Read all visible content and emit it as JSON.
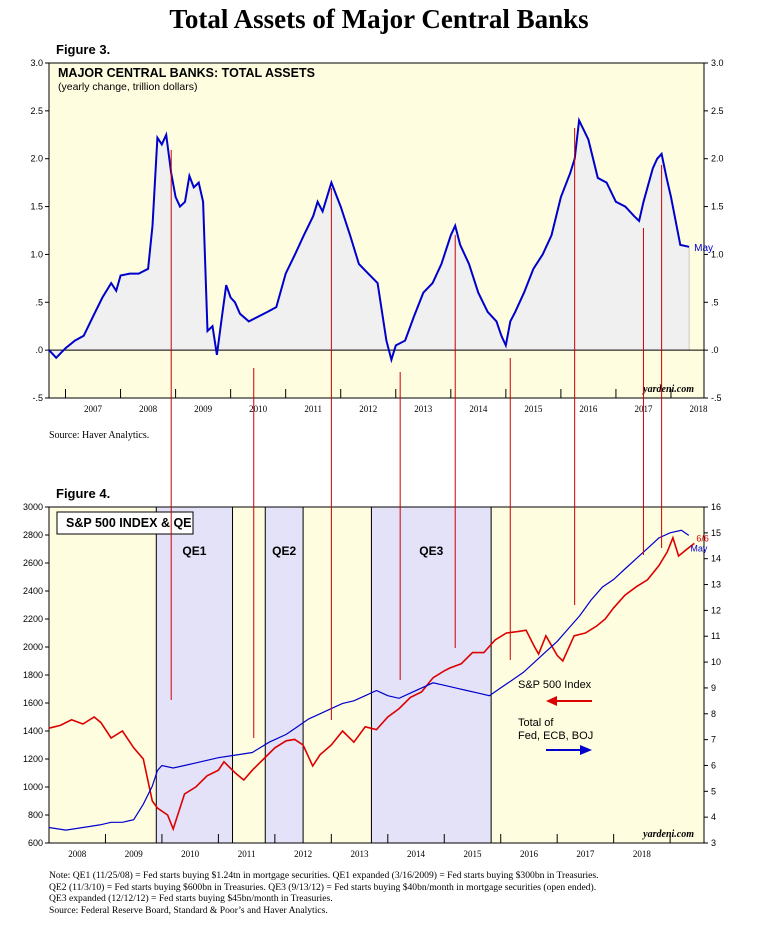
{
  "page_title": "Total Assets of Major Central Banks",
  "figure3": {
    "label": "Figure 3.",
    "source": "Source: Haver Analytics."
  },
  "figure4": {
    "label": "Figure 4."
  },
  "notes": [
    "Note: QE1 (11/25/08) = Fed starts buying $1.24tn in mortgage securities. QE1 expanded (3/16/2009) = Fed starts buying $300bn in Treasuries.",
    "QE2 (11/3/10) = Fed starts buying $600bn in Treasuries. QE3 (9/13/12) = Fed starts buying $40bn/month in mortgage securities (open ended).",
    "QE3 expanded (12/12/12) = Fed starts buying $45bn/month in Treasuries.",
    "Source: Federal Reserve Board, Standard & Poor’s and Haver Analytics."
  ],
  "colors": {
    "background": "#fffde0",
    "qe_band": "#e3e2f8",
    "blue_line": "#0000cc",
    "red_line": "#dd0000",
    "area_fill": "#f0f0f0",
    "marker_line": "#cc0000"
  },
  "chart_data": [
    {
      "type": "area",
      "title": "MAJOR CENTRAL BANKS: TOTAL ASSETS",
      "subtitle": "(yearly change, trillion dollars)",
      "watermark": "yardeni.com",
      "xlim": [
        2006.7,
        2018.6
      ],
      "ylim": [
        -0.5,
        3.0
      ],
      "yticks": [
        -0.5,
        0.0,
        0.5,
        1.0,
        1.5,
        2.0,
        2.5,
        3.0
      ],
      "ytick_labels": [
        "-.5",
        ".0",
        ".5",
        "1.0",
        "1.5",
        "2.0",
        "2.5",
        "3.0"
      ],
      "xtick_labels": [
        "2007",
        "2008",
        "2009",
        "2010",
        "2011",
        "2012",
        "2013",
        "2014",
        "2015",
        "2016",
        "2017",
        "2018"
      ],
      "grid": false,
      "end_label": "May",
      "series": [
        {
          "color": "#0000cc",
          "x": [
            2006.7,
            2006.83,
            2007.0,
            2007.17,
            2007.33,
            2007.5,
            2007.67,
            2007.83,
            2007.92,
            2008.0,
            2008.17,
            2008.33,
            2008.5,
            2008.58,
            2008.67,
            2008.75,
            2008.83,
            2008.92,
            2009.0,
            2009.08,
            2009.17,
            2009.25,
            2009.33,
            2009.42,
            2009.5,
            2009.58,
            2009.67,
            2009.75,
            2009.83,
            2009.92,
            2010.0,
            2010.08,
            2010.17,
            2010.33,
            2010.5,
            2010.67,
            2010.83,
            2011.0,
            2011.17,
            2011.33,
            2011.5,
            2011.58,
            2011.67,
            2011.83,
            2012.0,
            2012.17,
            2012.33,
            2012.5,
            2012.67,
            2012.75,
            2012.83,
            2012.92,
            2013.0,
            2013.17,
            2013.33,
            2013.5,
            2013.67,
            2013.83,
            2014.0,
            2014.08,
            2014.17,
            2014.33,
            2014.5,
            2014.67,
            2014.83,
            2014.92,
            2015.0,
            2015.08,
            2015.17,
            2015.33,
            2015.5,
            2015.67,
            2015.83,
            2016.0,
            2016.17,
            2016.25,
            2016.33,
            2016.5,
            2016.67,
            2016.83,
            2017.0,
            2017.17,
            2017.33,
            2017.42,
            2017.5,
            2017.67,
            2017.75,
            2017.83,
            2017.92,
            2018.0,
            2018.17,
            2018.33
          ],
          "values": [
            0.0,
            -0.08,
            0.02,
            0.1,
            0.15,
            0.35,
            0.55,
            0.7,
            0.62,
            0.78,
            0.8,
            0.8,
            0.85,
            1.3,
            2.22,
            2.15,
            2.25,
            1.85,
            1.6,
            1.5,
            1.55,
            1.82,
            1.7,
            1.75,
            1.55,
            0.2,
            0.25,
            -0.05,
            0.3,
            0.68,
            0.55,
            0.5,
            0.38,
            0.3,
            0.35,
            0.4,
            0.45,
            0.8,
            1.0,
            1.2,
            1.4,
            1.55,
            1.45,
            1.75,
            1.5,
            1.2,
            0.9,
            0.8,
            0.7,
            0.4,
            0.1,
            -0.1,
            0.05,
            0.1,
            0.35,
            0.6,
            0.7,
            0.9,
            1.2,
            1.3,
            1.1,
            0.9,
            0.6,
            0.4,
            0.3,
            0.15,
            0.05,
            0.3,
            0.4,
            0.6,
            0.85,
            1.0,
            1.2,
            1.6,
            1.85,
            2.0,
            2.4,
            2.2,
            1.8,
            1.75,
            1.55,
            1.5,
            1.4,
            1.35,
            1.55,
            1.9,
            2.0,
            2.05,
            1.8,
            1.6,
            1.1,
            1.08
          ]
        }
      ]
    },
    {
      "type": "line",
      "title": "S&P 500 INDEX & QE",
      "watermark": "yardeni.com",
      "xlim": [
        2007.0,
        2018.6
      ],
      "ylim_left": [
        600,
        3000
      ],
      "ylim_right": [
        3,
        16
      ],
      "yticks_left": [
        600,
        800,
        1000,
        1200,
        1400,
        1600,
        1800,
        2000,
        2200,
        2400,
        2600,
        2800,
        3000
      ],
      "yticks_right": [
        3,
        4,
        5,
        6,
        7,
        8,
        9,
        10,
        11,
        12,
        13,
        14,
        15,
        16
      ],
      "xtick_labels": [
        "2008",
        "2009",
        "2010",
        "2011",
        "2012",
        "2013",
        "2014",
        "2015",
        "2016",
        "2017",
        "2018"
      ],
      "grid": false,
      "qe_bands": [
        {
          "label": "QE1",
          "x0": 2008.9,
          "x1": 2010.25
        },
        {
          "label": "QE2",
          "x0": 2010.83,
          "x1": 2011.5
        },
        {
          "label": "QE3",
          "x0": 2012.71,
          "x1": 2014.83
        }
      ],
      "end_labels": [
        "6/6",
        "May"
      ],
      "series": [
        {
          "name": "S&P 500 Index",
          "axis": "left",
          "color": "#dd0000",
          "x": [
            2007.0,
            2007.2,
            2007.4,
            2007.6,
            2007.8,
            2007.92,
            2008.1,
            2008.3,
            2008.5,
            2008.67,
            2008.83,
            2008.92,
            2009.1,
            2009.2,
            2009.4,
            2009.6,
            2009.8,
            2010.0,
            2010.1,
            2010.3,
            2010.45,
            2010.6,
            2010.8,
            2011.0,
            2011.2,
            2011.35,
            2011.5,
            2011.67,
            2011.8,
            2012.0,
            2012.2,
            2012.4,
            2012.6,
            2012.8,
            2013.0,
            2013.2,
            2013.4,
            2013.6,
            2013.8,
            2014.0,
            2014.1,
            2014.3,
            2014.5,
            2014.7,
            2014.9,
            2015.1,
            2015.3,
            2015.45,
            2015.6,
            2015.67,
            2015.8,
            2016.0,
            2016.1,
            2016.3,
            2016.5,
            2016.7,
            2016.85,
            2017.0,
            2017.2,
            2017.4,
            2017.6,
            2017.8,
            2017.95,
            2018.05,
            2018.15,
            2018.3,
            2018.43
          ],
          "values": [
            1420,
            1440,
            1480,
            1450,
            1500,
            1460,
            1350,
            1400,
            1280,
            1200,
            900,
            850,
            800,
            700,
            950,
            1000,
            1080,
            1120,
            1180,
            1100,
            1050,
            1120,
            1200,
            1280,
            1330,
            1340,
            1300,
            1150,
            1230,
            1300,
            1400,
            1320,
            1430,
            1410,
            1500,
            1560,
            1640,
            1680,
            1780,
            1830,
            1850,
            1880,
            1960,
            1960,
            2050,
            2100,
            2110,
            2120,
            2000,
            1950,
            2080,
            1940,
            1900,
            2080,
            2100,
            2150,
            2200,
            2280,
            2370,
            2430,
            2480,
            2580,
            2680,
            2780,
            2650,
            2700,
            2740
          ]
        },
        {
          "name": "Total of Fed, ECB, BOJ",
          "axis": "right",
          "color": "#0000cc",
          "x": [
            2007.0,
            2007.3,
            2007.6,
            2007.9,
            2008.1,
            2008.3,
            2008.5,
            2008.67,
            2008.83,
            2008.92,
            2009.0,
            2009.2,
            2009.4,
            2009.6,
            2009.8,
            2010.0,
            2010.3,
            2010.6,
            2010.9,
            2011.2,
            2011.4,
            2011.6,
            2011.8,
            2012.0,
            2012.2,
            2012.4,
            2012.6,
            2012.8,
            2013.0,
            2013.2,
            2013.4,
            2013.6,
            2013.8,
            2014.0,
            2014.2,
            2014.4,
            2014.6,
            2014.8,
            2015.0,
            2015.2,
            2015.4,
            2015.6,
            2015.8,
            2016.0,
            2016.2,
            2016.4,
            2016.6,
            2016.8,
            2017.0,
            2017.2,
            2017.4,
            2017.6,
            2017.8,
            2018.0,
            2018.2,
            2018.33
          ],
          "values": [
            3.6,
            3.5,
            3.6,
            3.7,
            3.8,
            3.8,
            3.9,
            4.5,
            5.2,
            5.8,
            6.0,
            5.9,
            6.0,
            6.1,
            6.2,
            6.3,
            6.4,
            6.5,
            6.9,
            7.2,
            7.5,
            7.8,
            8.0,
            8.2,
            8.4,
            8.5,
            8.7,
            8.9,
            8.7,
            8.6,
            8.8,
            9.0,
            9.2,
            9.1,
            9.0,
            8.9,
            8.8,
            8.7,
            9.0,
            9.3,
            9.6,
            10.0,
            10.4,
            10.8,
            11.3,
            11.8,
            12.4,
            12.9,
            13.2,
            13.6,
            14.0,
            14.4,
            14.8,
            15.0,
            15.1,
            14.9
          ]
        }
      ],
      "legend": [
        {
          "label": "S&P 500 Index",
          "color": "#dd0000",
          "arrow": "left"
        },
        {
          "label": "Total of\nFed, ECB, BOJ",
          "color": "#0000cc",
          "arrow": "right"
        }
      ],
      "legend_lines": [
        "Total of",
        "Fed, ECB, BOJ"
      ],
      "marker_lines_years": [
        2008.92,
        2010.42,
        2011.83,
        2013.08,
        2014.08,
        2015.08,
        2016.25,
        2017.5,
        2017.83
      ]
    }
  ]
}
